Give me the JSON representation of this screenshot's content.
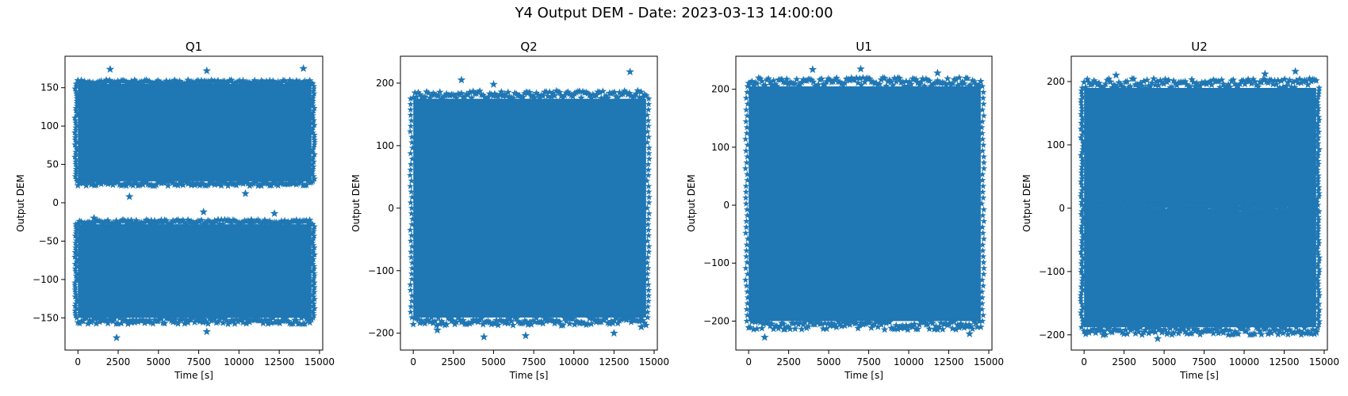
{
  "figure": {
    "suptitle": "Y4 Output DEM - Date: 2023-03-13 14:00:00",
    "marker_color": "#1f77b4",
    "marker": "star"
  },
  "chart_data": [
    {
      "type": "scatter",
      "title": "Q1",
      "xlabel": "Time [s]",
      "ylabel": "Output DEM",
      "xlim": [
        -800,
        15200
      ],
      "ylim": [
        -192,
        191
      ],
      "xticks": [
        0,
        2500,
        5000,
        7500,
        10000,
        12500,
        15000
      ],
      "yticks": [
        -150,
        -100,
        -50,
        0,
        50,
        100,
        150
      ],
      "grid": false,
      "legend": "none",
      "x_range": [
        0,
        14500
      ],
      "bands": [
        {
          "y_top": 155,
          "y_bottom": 28,
          "edge_top": 160,
          "edge_bottom": 22
        },
        {
          "y_top": -28,
          "y_bottom": -150,
          "edge_top": -22,
          "edge_bottom": -158
        }
      ],
      "outliers": [
        [
          2000,
          174
        ],
        [
          8000,
          172
        ],
        [
          14000,
          175
        ],
        [
          3200,
          8
        ],
        [
          7800,
          -12
        ],
        [
          12200,
          -14
        ],
        [
          2400,
          -176
        ],
        [
          8000,
          -168
        ],
        [
          10400,
          12
        ],
        [
          1000,
          -20
        ]
      ]
    },
    {
      "type": "scatter",
      "title": "Q2",
      "xlabel": "Time [s]",
      "ylabel": "Output DEM",
      "xlim": [
        -800,
        15200
      ],
      "ylim": [
        -227,
        243
      ],
      "xticks": [
        0,
        2500,
        5000,
        7500,
        10000,
        12500,
        15000
      ],
      "yticks": [
        -200,
        -100,
        0,
        100,
        200
      ],
      "grid": false,
      "legend": "none",
      "x_range": [
        0,
        14500
      ],
      "bands": [
        {
          "y_top": 175,
          "y_bottom": -175,
          "edge_top": 188,
          "edge_bottom": -188
        }
      ],
      "outliers": [
        [
          3000,
          205
        ],
        [
          13500,
          218
        ],
        [
          5000,
          198
        ],
        [
          4400,
          -206
        ],
        [
          7000,
          -204
        ],
        [
          12500,
          -200
        ],
        [
          1500,
          -195
        ],
        [
          14200,
          -190
        ]
      ]
    },
    {
      "type": "scatter",
      "title": "U1",
      "xlabel": "Time [s]",
      "ylabel": "Output DEM",
      "xlim": [
        -800,
        15200
      ],
      "ylim": [
        -250,
        257
      ],
      "xticks": [
        0,
        2500,
        5000,
        7500,
        10000,
        12500,
        15000
      ],
      "yticks": [
        -200,
        -100,
        0,
        100,
        200
      ],
      "grid": false,
      "legend": "none",
      "x_range": [
        0,
        14500
      ],
      "bands": [
        {
          "y_top": 205,
          "y_bottom": -200,
          "edge_top": 220,
          "edge_bottom": -215
        }
      ],
      "outliers": [
        [
          4000,
          234
        ],
        [
          7000,
          235
        ],
        [
          11800,
          228
        ],
        [
          1000,
          -228
        ],
        [
          13800,
          -222
        ],
        [
          2200,
          -214
        ],
        [
          9500,
          -212
        ]
      ]
    },
    {
      "type": "scatter",
      "title": "U2",
      "xlabel": "Time [s]",
      "ylabel": "Output DEM",
      "xlim": [
        -800,
        15200
      ],
      "ylim": [
        -224,
        240
      ],
      "xticks": [
        0,
        2500,
        5000,
        7500,
        10000,
        12500,
        15000
      ],
      "yticks": [
        -200,
        -100,
        0,
        100,
        200
      ],
      "grid": false,
      "legend": "none",
      "x_range": [
        0,
        14500
      ],
      "bands": [
        {
          "y_top": 190,
          "y_bottom": 5,
          "edge_top": 205,
          "edge_bottom": 1
        },
        {
          "y_top": -5,
          "y_bottom": -188,
          "edge_top": -1,
          "edge_bottom": -200
        }
      ],
      "outliers": [
        [
          13200,
          216
        ],
        [
          11300,
          212
        ],
        [
          2000,
          210
        ],
        [
          4600,
          -206
        ],
        [
          1200,
          -200
        ],
        [
          14500,
          -196
        ],
        [
          6000,
          5
        ],
        [
          9000,
          4
        ]
      ]
    }
  ]
}
